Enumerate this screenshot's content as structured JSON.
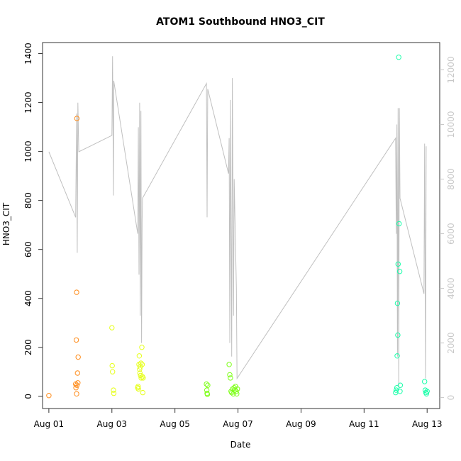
{
  "chart_data": {
    "type": "scatter",
    "title": "ATOM1 Southbound HNO3_CIT",
    "xlabel": "Date",
    "ylabel": "HNO3_CIT",
    "x_ticks": [
      "Aug 01",
      "Aug 03",
      "Aug 05",
      "Aug 07",
      "Aug 09",
      "Aug 11",
      "Aug 13"
    ],
    "x_tick_days": [
      1,
      3,
      5,
      7,
      9,
      11,
      13
    ],
    "x_range_days": [
      0.8,
      13.4
    ],
    "ylim": [
      -50,
      1445
    ],
    "y_ticks": [
      0,
      200,
      400,
      600,
      800,
      1000,
      1200,
      1400
    ],
    "y2_ticks": [
      0,
      2000,
      4000,
      6000,
      8000,
      10000,
      12000
    ],
    "y2lim": [
      -400,
      13000
    ],
    "grid": false,
    "colors": {
      "axis": "#333333",
      "secondary_axis": "#c8c8c8",
      "line": "#c0c0c0"
    },
    "series": [
      {
        "color": "#ff8c1a",
        "points": [
          [
            1.0,
            3
          ],
          [
            1.88,
            10
          ],
          [
            1.86,
            35
          ],
          [
            1.85,
            50
          ],
          [
            1.92,
            55
          ],
          [
            1.89,
            45
          ],
          [
            1.91,
            95
          ],
          [
            1.93,
            160
          ],
          [
            1.87,
            230
          ],
          [
            1.88,
            425
          ],
          [
            1.89,
            1135
          ]
        ]
      },
      {
        "color": "#e6ff1a",
        "points": [
          [
            3.0,
            280
          ],
          [
            3.01,
            125
          ],
          [
            3.02,
            100
          ],
          [
            3.05,
            25
          ],
          [
            3.06,
            12
          ],
          [
            3.82,
            35
          ],
          [
            3.83,
            40
          ],
          [
            3.84,
            30
          ],
          [
            3.86,
            130
          ],
          [
            3.87,
            165
          ],
          [
            3.88,
            110
          ],
          [
            3.89,
            95
          ],
          [
            3.9,
            120
          ],
          [
            3.91,
            85
          ],
          [
            3.92,
            135
          ],
          [
            3.93,
            75
          ],
          [
            3.95,
            200
          ],
          [
            3.96,
            130
          ],
          [
            3.97,
            80
          ],
          [
            3.98,
            15
          ],
          [
            3.99,
            75
          ]
        ]
      },
      {
        "color": "#7fff1a",
        "points": [
          [
            6.0,
            50
          ],
          [
            6.01,
            25
          ],
          [
            6.02,
            12
          ],
          [
            6.03,
            8
          ],
          [
            6.04,
            45
          ],
          [
            6.72,
            130
          ],
          [
            6.74,
            88
          ],
          [
            6.76,
            75
          ],
          [
            6.78,
            20
          ],
          [
            6.8,
            15
          ],
          [
            6.83,
            30
          ],
          [
            6.85,
            10
          ],
          [
            6.88,
            35
          ],
          [
            6.9,
            25
          ],
          [
            6.92,
            40
          ],
          [
            6.94,
            20
          ],
          [
            6.96,
            10
          ],
          [
            6.98,
            30
          ]
        ]
      },
      {
        "color": "#1affaa",
        "points": [
          [
            12.0,
            15
          ],
          [
            12.02,
            25
          ],
          [
            12.04,
            35
          ],
          [
            12.05,
            165
          ],
          [
            12.06,
            380
          ],
          [
            12.07,
            250
          ],
          [
            12.08,
            540
          ],
          [
            12.1,
            1385
          ],
          [
            12.11,
            705
          ],
          [
            12.13,
            510
          ],
          [
            12.14,
            20
          ],
          [
            12.15,
            45
          ],
          [
            12.92,
            60
          ],
          [
            12.94,
            25
          ],
          [
            12.96,
            15
          ],
          [
            12.98,
            10
          ],
          [
            13.0,
            20
          ]
        ]
      }
    ],
    "line_series": {
      "axis": "right",
      "points": [
        [
          1.0,
          9000
        ],
        [
          1.85,
          6600
        ],
        [
          1.88,
          10400
        ],
        [
          1.9,
          5300
        ],
        [
          1.92,
          10800
        ],
        [
          1.95,
          9000
        ],
        [
          3.0,
          9600
        ],
        [
          3.02,
          12500
        ],
        [
          3.05,
          7400
        ],
        [
          3.06,
          11600
        ],
        [
          3.82,
          6000
        ],
        [
          3.84,
          9900
        ],
        [
          3.86,
          4500
        ],
        [
          3.88,
          10800
        ],
        [
          3.9,
          3000
        ],
        [
          3.92,
          10500
        ],
        [
          3.94,
          2000
        ],
        [
          3.96,
          6500
        ],
        [
          3.97,
          7300
        ],
        [
          6.0,
          11500
        ],
        [
          6.02,
          6600
        ],
        [
          6.04,
          11300
        ],
        [
          6.7,
          8200
        ],
        [
          6.72,
          9500
        ],
        [
          6.74,
          2000
        ],
        [
          6.76,
          10900
        ],
        [
          6.8,
          1500
        ],
        [
          6.82,
          11700
        ],
        [
          6.86,
          3000
        ],
        [
          6.88,
          8000
        ],
        [
          6.95,
          4000
        ],
        [
          6.97,
          700
        ],
        [
          12.0,
          9500
        ],
        [
          12.02,
          6000
        ],
        [
          12.04,
          10000
        ],
        [
          12.06,
          1500
        ],
        [
          12.08,
          10600
        ],
        [
          12.1,
          400
        ],
        [
          12.12,
          10600
        ],
        [
          12.14,
          7300
        ],
        [
          12.9,
          3800
        ],
        [
          12.92,
          9300
        ],
        [
          12.95,
          700
        ],
        [
          12.97,
          9200
        ]
      ]
    }
  }
}
